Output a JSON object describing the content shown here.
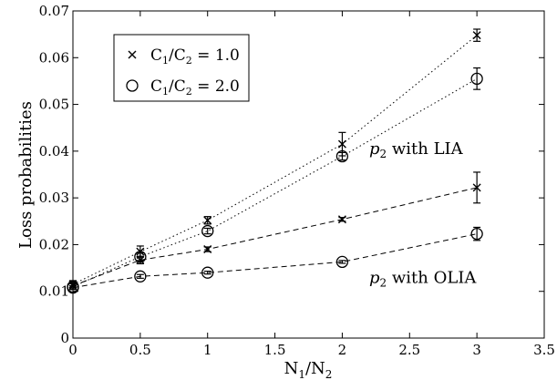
{
  "chart_data": {
    "type": "scatter",
    "xlabel": "N1/N2",
    "ylabel": "Loss probabilities",
    "xlim": [
      0,
      3.5
    ],
    "ylim": [
      0,
      0.07
    ],
    "xticks": [
      0,
      0.5,
      1,
      1.5,
      2,
      2.5,
      3,
      3.5
    ],
    "yticks": [
      0,
      0.01,
      0.02,
      0.03,
      0.04,
      0.05,
      0.06,
      0.07
    ],
    "xtick_labels": [
      "0",
      "0.5",
      "1",
      "1.5",
      "2",
      "2.5",
      "3",
      "3.5"
    ],
    "ytick_labels": [
      "0",
      "0.01",
      "0.02",
      "0.03",
      "0.04",
      "0.05",
      "0.06",
      "0.07"
    ],
    "grid": false,
    "legend_position": "top-left",
    "series": [
      {
        "name": "C1/C2 = 1.0",
        "label_main": "C",
        "sub1": "1",
        "label_mid": "/C",
        "sub2": "2",
        "label_end": " = 1.0",
        "marker": "x",
        "groups": [
          {
            "label_pre": "p",
            "label_sub": "2",
            "label_post": " with LIA",
            "line": "dotted",
            "x": [
              0,
              0.5,
              1,
              2,
              3
            ],
            "y": [
              0.0115,
              0.0185,
              0.0252,
              0.0415,
              0.0648
            ],
            "err": [
              0.0008,
              0.0012,
              0.0008,
              0.0025,
              0.0013
            ]
          },
          {
            "label_pre": "p",
            "label_sub": "2",
            "label_post": " with OLIA",
            "line": "dashed",
            "x": [
              0,
              0.5,
              1,
              2,
              3
            ],
            "y": [
              0.0112,
              0.0167,
              0.019,
              0.0254,
              0.0322
            ],
            "err": [
              0.0005,
              0.0008,
              0.0005,
              0.0004,
              0.0033
            ]
          }
        ]
      },
      {
        "name": "C1/C2 = 2.0",
        "label_main": "C",
        "sub1": "1",
        "label_mid": "/C",
        "sub2": "2",
        "label_end": " = 2.0",
        "marker": "o",
        "groups": [
          {
            "line": "dotted",
            "x": [
              0,
              0.5,
              1,
              2,
              3
            ],
            "y": [
              0.011,
              0.0174,
              0.0229,
              0.0389,
              0.0555
            ],
            "err": [
              0.0006,
              0.0008,
              0.0006,
              0.0008,
              0.0023
            ]
          },
          {
            "line": "dashed",
            "x": [
              0,
              0.5,
              1,
              2,
              3
            ],
            "y": [
              0.0108,
              0.0132,
              0.014,
              0.0163,
              0.0223
            ],
            "err": [
              0.0004,
              0.0004,
              0.0003,
              0.0003,
              0.0014
            ]
          }
        ]
      }
    ],
    "annotations": [
      {
        "pre": "p",
        "sub": "2",
        "post": " with LIA",
        "x": 2.2,
        "y": 0.0394
      },
      {
        "pre": "p",
        "sub": "2",
        "post": " with OLIA",
        "x": 2.2,
        "y": 0.0118
      }
    ]
  }
}
